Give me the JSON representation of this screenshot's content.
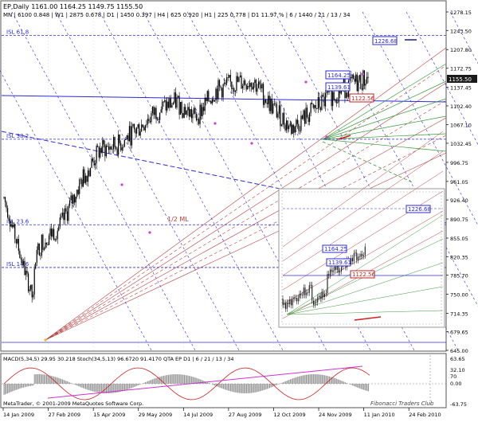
{
  "chart_data": {
    "type": "candlestick",
    "title": "EP,Daily 1161.00 1164.25 1149.75 1155.50",
    "info_line": "MN | 6100 0.848 | W1 | 2875 0.678 | D1 | 1450 0.397 | H4 | 625 0.920 | H1 | 225 0.778 | D1 11.97 % | 6 / 1440 / 21 / 13 / 34",
    "y_ticks": [
      "1278.15",
      "1243.50",
      "1207.80",
      "1172.75",
      "1137.45",
      "1102.40",
      "1067.10",
      "1032.45",
      "996.75",
      "961.05",
      "926.40",
      "890.75",
      "855.05",
      "820.35",
      "785.70",
      "750.00",
      "714.35",
      "679.65",
      "645.00"
    ],
    "x_ticks": [
      "14 Jan 2009",
      "27 Feb 2009",
      "15 Apr 2009",
      "29 May 2009",
      "14 Jul 2009",
      "27 Aug 2009",
      "12 Oct 2009",
      "24 Nov 2009",
      "11 Jan 2010",
      "24 Feb 2010"
    ],
    "ylim": [
      645.0,
      1278.15
    ],
    "last_price": "1155.50",
    "price_labels": [
      "1226.68",
      "1164.25",
      "1139.61",
      "1122.56"
    ],
    "inset_price_labels": [
      "1226.68",
      "1164.25",
      "1139.61",
      "1122.56"
    ],
    "fib_levels": [
      {
        "label": "ISL 61.8",
        "value": 1234
      },
      {
        "label": "ISL 38.2",
        "value": 1040
      },
      {
        "label": "ISL 23.6",
        "value": 880
      },
      {
        "label": "ISL 14.6",
        "value": 800
      }
    ],
    "median_label": "1/2 ML",
    "indicator_title": "MACD(5,34,5) 29.95 30.218  Stoch(34,5,13) 96.6720 91.4170  QTA EP D1 | 6 / 21 / 13 / 34",
    "indicator_y_ticks": [
      "63.65",
      "32.10",
      "0.00",
      "-63.75"
    ],
    "indicator_y_extra": "70",
    "swing_closes": [
      720,
      760,
      850,
      880,
      960,
      1020,
      1030,
      1060,
      1095,
      1110,
      1080,
      1130,
      1145,
      1150,
      1100,
      1060,
      1090,
      1120,
      1140,
      1155
    ]
  },
  "footer": {
    "copyright": "MetaTrader, © 2001-2009 MetaQuotes Software Corp.",
    "signature": "Fibonacci Traders Club"
  },
  "colors": {
    "bull": "#000000",
    "bear": "#000000",
    "grid": "#c8c8c8",
    "fib_blue": "#2b2bd9",
    "median_red": "#b84040",
    "green_fan": "#3a9a3a",
    "last_price_bg": "#1a1a1a"
  }
}
